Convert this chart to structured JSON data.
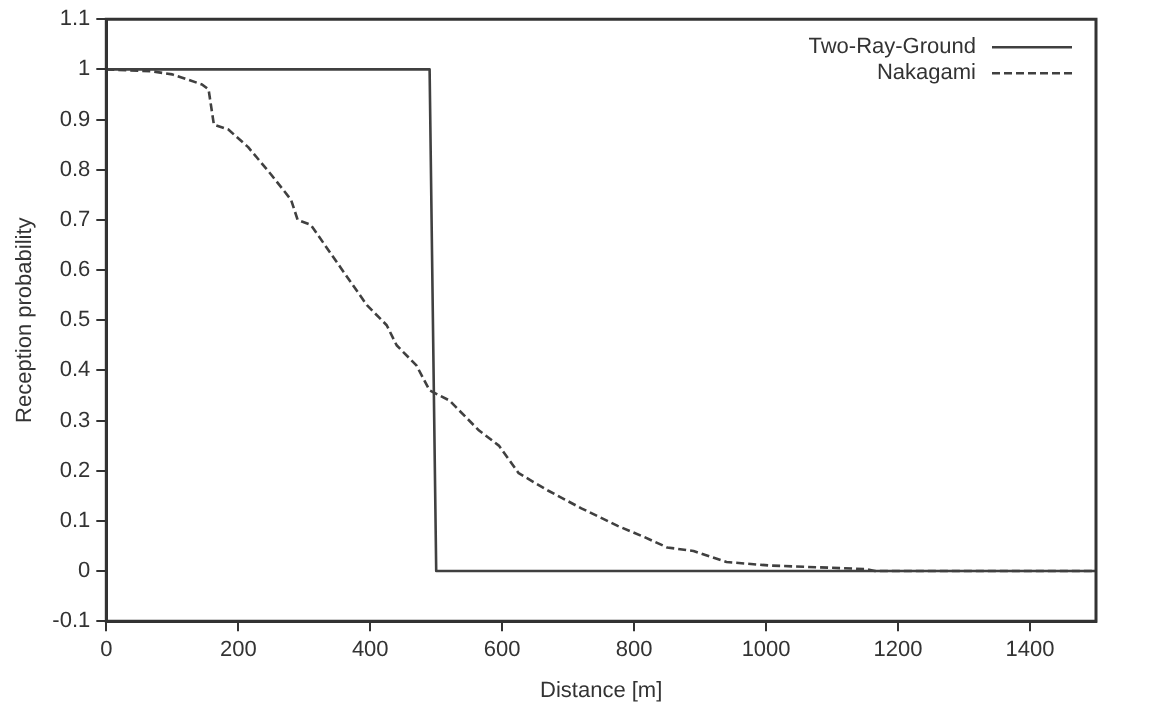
{
  "chart_data": {
    "type": "line",
    "xlabel": "Distance [m]",
    "ylabel": "Reception probability",
    "xlim": [
      0,
      1500
    ],
    "xticks": [
      0,
      200,
      400,
      600,
      800,
      1000,
      1200,
      1400
    ],
    "ylim": [
      -0.1,
      1.1
    ],
    "yticks": [
      -0.1,
      0,
      0.1,
      0.2,
      0.3,
      0.4,
      0.5,
      0.6,
      0.7,
      0.8,
      0.9,
      1,
      1.1
    ],
    "grid": false,
    "legend": "top right",
    "marker": "none",
    "series": [
      {
        "name": "Two-Ray-Ground",
        "color": "#404040",
        "line_style": "solid",
        "x": [
          0,
          490,
          500,
          1500
        ],
        "values": [
          1,
          1,
          0,
          0
        ]
      },
      {
        "name": "Nakagami",
        "color": "#404040",
        "line_style": "dashed",
        "x": [
          0,
          70,
          100,
          145,
          155,
          163,
          185,
          215,
          250,
          280,
          290,
          310,
          355,
          395,
          425,
          440,
          470,
          490,
          520,
          565,
          595,
          625,
          670,
          720,
          775,
          815,
          850,
          890,
          940,
          1005,
          1150,
          1165,
          1500
        ],
        "values": [
          1,
          0.996,
          0.99,
          0.97,
          0.96,
          0.89,
          0.88,
          0.845,
          0.79,
          0.74,
          0.7,
          0.69,
          0.605,
          0.53,
          0.49,
          0.45,
          0.41,
          0.36,
          0.34,
          0.28,
          0.25,
          0.195,
          0.16,
          0.125,
          0.09,
          0.068,
          0.047,
          0.04,
          0.018,
          0.011,
          0.004,
          0,
          0
        ]
      }
    ]
  }
}
